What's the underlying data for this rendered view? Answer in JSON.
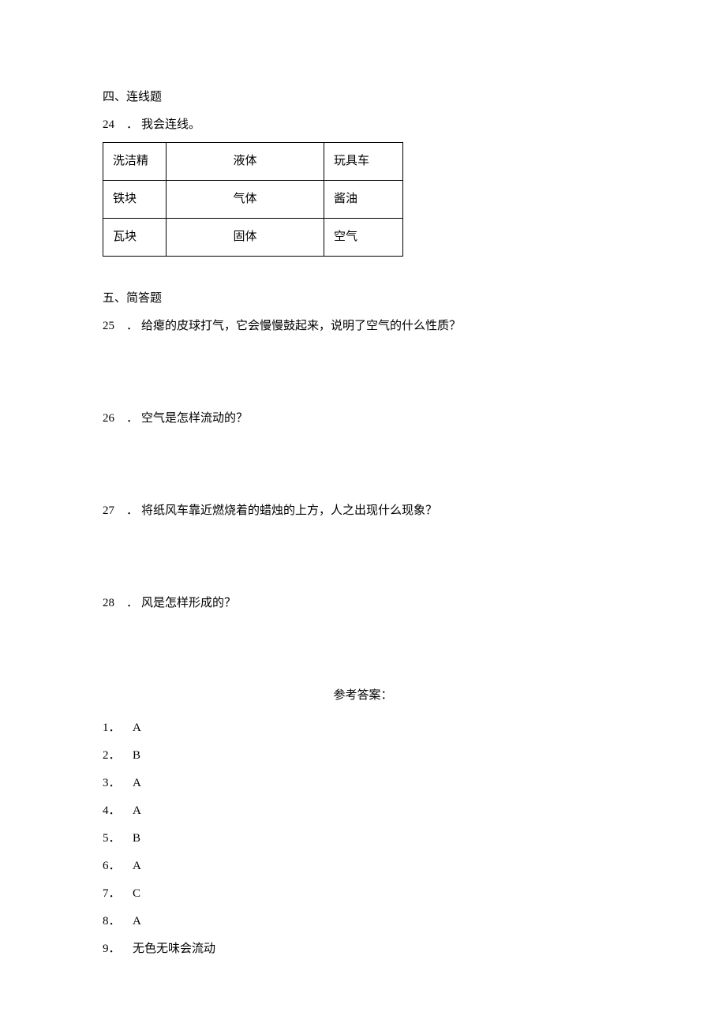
{
  "section4_heading": "四、连线题",
  "q24": {
    "number": "24",
    "dot": "．",
    "text": "我会连线。"
  },
  "table": {
    "rows": [
      [
        "洗洁精",
        "液体",
        "玩具车"
      ],
      [
        "铁块",
        "气体",
        "酱油"
      ],
      [
        "瓦块",
        "固体",
        "空气"
      ]
    ]
  },
  "section5_heading": "五、简答题",
  "q25": {
    "number": "25",
    "dot": "．",
    "text": "给瘪的皮球打气，它会慢慢鼓起来，说明了空气的什么性质？"
  },
  "q26": {
    "number": "26",
    "dot": "．",
    "text": "空气是怎样流动的？"
  },
  "q27": {
    "number": "27",
    "dot": "．",
    "text": "将纸风车靠近燃烧着的蜡烛的上方，人之出现什么现象？"
  },
  "q28": {
    "number": "28",
    "dot": "．",
    "text": "风是怎样形成的？"
  },
  "answers_heading": "参考答案：",
  "answers": [
    {
      "number": "1．",
      "text": "A"
    },
    {
      "number": "2．",
      "text": "B"
    },
    {
      "number": "3．",
      "text": "A"
    },
    {
      "number": "4．",
      "text": "A"
    },
    {
      "number": "5．",
      "text": "B"
    },
    {
      "number": "6．",
      "text": "A"
    },
    {
      "number": "7．",
      "text": "C"
    },
    {
      "number": "8．",
      "text": "A"
    },
    {
      "number": "9．",
      "text": "无色无味会流动"
    }
  ]
}
